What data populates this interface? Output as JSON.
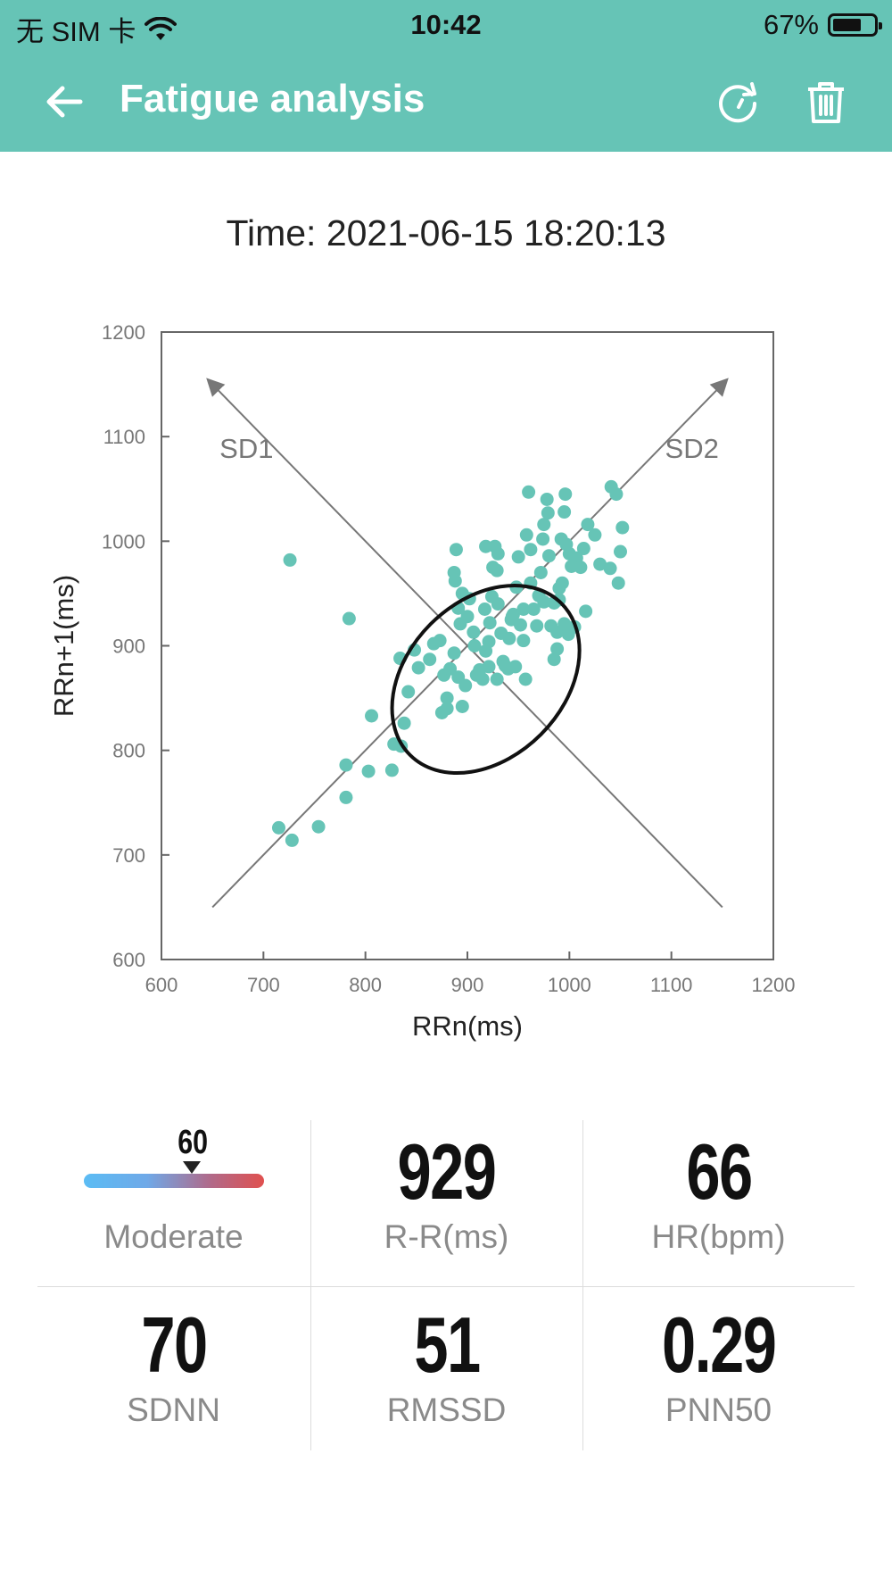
{
  "status_bar": {
    "carrier": "无 SIM 卡",
    "time": "10:42",
    "battery": "67%"
  },
  "nav": {
    "title": "Fatigue analysis",
    "icons": [
      "back-arrow-icon",
      "refresh-icon",
      "trash-icon"
    ]
  },
  "record_time": "Time: 2021-06-15 18:20:13",
  "chart_data": {
    "type": "scatter",
    "xlabel": "RRn(ms)",
    "ylabel": "RRn+1(ms)",
    "xlim": [
      600,
      1200
    ],
    "ylim": [
      600,
      1200
    ],
    "xticks": [
      600,
      700,
      800,
      900,
      1000,
      1100,
      1200
    ],
    "yticks": [
      600,
      700,
      800,
      900,
      1000,
      1100,
      1200
    ],
    "point_color": "#66c4b6",
    "annotations": [
      "SD1",
      "SD2"
    ],
    "ellipse": {
      "center": [
        918,
        868
      ],
      "sd1": 51,
      "sd2": 70,
      "angle_deg": 45
    },
    "points": [
      [
        726,
        982
      ],
      [
        784,
        926
      ],
      [
        715,
        726
      ],
      [
        728,
        714
      ],
      [
        754,
        727
      ],
      [
        781,
        755
      ],
      [
        781,
        786
      ],
      [
        803,
        780
      ],
      [
        826,
        781
      ],
      [
        806,
        833
      ],
      [
        828,
        806
      ],
      [
        835,
        804
      ],
      [
        838,
        826
      ],
      [
        842,
        856
      ],
      [
        834,
        888
      ],
      [
        852,
        879
      ],
      [
        848,
        896
      ],
      [
        863,
        887
      ],
      [
        867,
        902
      ],
      [
        873,
        905
      ],
      [
        877,
        872
      ],
      [
        875,
        836
      ],
      [
        880,
        840
      ],
      [
        880,
        850
      ],
      [
        883,
        878
      ],
      [
        887,
        893
      ],
      [
        891,
        870
      ],
      [
        895,
        842
      ],
      [
        898,
        862
      ],
      [
        893,
        921
      ],
      [
        891,
        936
      ],
      [
        888,
        962
      ],
      [
        887,
        970
      ],
      [
        889,
        992
      ],
      [
        895,
        950
      ],
      [
        900,
        928
      ],
      [
        902,
        945
      ],
      [
        907,
        900
      ],
      [
        909,
        872
      ],
      [
        912,
        877
      ],
      [
        915,
        868
      ],
      [
        917,
        935
      ],
      [
        918,
        895
      ],
      [
        921,
        904
      ],
      [
        922,
        922
      ],
      [
        924,
        947
      ],
      [
        925,
        975
      ],
      [
        927,
        995
      ],
      [
        929,
        972
      ],
      [
        930,
        940
      ],
      [
        933,
        912
      ],
      [
        935,
        885
      ],
      [
        937,
        881
      ],
      [
        940,
        878
      ],
      [
        941,
        907
      ],
      [
        943,
        925
      ],
      [
        945,
        930
      ],
      [
        948,
        956
      ],
      [
        950,
        985
      ],
      [
        952,
        920
      ],
      [
        955,
        935
      ],
      [
        957,
        868
      ],
      [
        958,
        1006
      ],
      [
        960,
        1047
      ],
      [
        962,
        992
      ],
      [
        965,
        935
      ],
      [
        968,
        919
      ],
      [
        970,
        948
      ],
      [
        972,
        970
      ],
      [
        974,
        1002
      ],
      [
        975,
        1016
      ],
      [
        978,
        1040
      ],
      [
        979,
        1027
      ],
      [
        980,
        986
      ],
      [
        982,
        919
      ],
      [
        985,
        941
      ],
      [
        985,
        887
      ],
      [
        988,
        913
      ],
      [
        988,
        897
      ],
      [
        990,
        944
      ],
      [
        992,
        1002
      ],
      [
        993,
        960
      ],
      [
        995,
        921
      ],
      [
        995,
        1028
      ],
      [
        996,
        1045
      ],
      [
        997,
        997
      ],
      [
        999,
        911
      ],
      [
        1000,
        988
      ],
      [
        1002,
        976
      ],
      [
        1005,
        918
      ],
      [
        1007,
        984
      ],
      [
        1011,
        975
      ],
      [
        1014,
        993
      ],
      [
        1016,
        933
      ],
      [
        1018,
        1016
      ],
      [
        1025,
        1006
      ],
      [
        1030,
        978
      ],
      [
        1040,
        974
      ],
      [
        1041,
        1052
      ],
      [
        1046,
        1045
      ],
      [
        1048,
        960
      ],
      [
        1050,
        990
      ],
      [
        1052,
        1013
      ],
      [
        918,
        995
      ],
      [
        930,
        988
      ],
      [
        944,
        928
      ],
      [
        906,
        913
      ],
      [
        962,
        960
      ],
      [
        990,
        955
      ],
      [
        975,
        942
      ],
      [
        955,
        905
      ],
      [
        921,
        880
      ],
      [
        929,
        868
      ],
      [
        947,
        880
      ]
    ]
  },
  "stats": {
    "fatigue": {
      "value": "60",
      "label": "Moderate",
      "level": 0.6
    },
    "rr": {
      "value": "929",
      "label": "R-R(ms)"
    },
    "hr": {
      "value": "66",
      "label": "HR(bpm)"
    },
    "sdnn": {
      "value": "70",
      "label": "SDNN"
    },
    "rmssd": {
      "value": "51",
      "label": "RMSSD"
    },
    "pnn50": {
      "value": "0.29",
      "label": "PNN50"
    }
  }
}
